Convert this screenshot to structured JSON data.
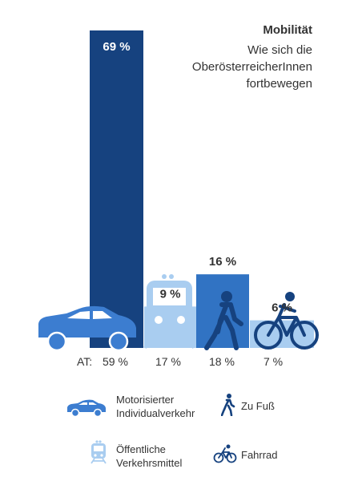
{
  "title": "Mobilität",
  "subtitle_lines": [
    "Wie sich die",
    "OberösterreicherInnen",
    "fortbewegen"
  ],
  "colors": {
    "motorisiert": "#16427f",
    "oeffentlich": "#a9cdf0",
    "fuss": "#3173c3",
    "fahrrad": "#a9cdf0",
    "icon_dark": "#16427f",
    "icon_mid": "#3c7dd0",
    "text": "#333333"
  },
  "chart_data": {
    "type": "bar",
    "categories": [
      "Motorisierter Individualverkehr",
      "Öffentliche Verkehrsmittel",
      "Zu Fuß",
      "Fahrrad"
    ],
    "series": [
      {
        "values": [
          69,
          9,
          16,
          6
        ]
      },
      {
        "name": "AT",
        "values": [
          59,
          17,
          18,
          7
        ]
      }
    ],
    "value_labels": [
      "69 %",
      "9 %",
      "16 %",
      "6 %"
    ],
    "at_label": "AT:",
    "at_labels": [
      "59 %",
      "17 %",
      "18 %",
      "7 %"
    ],
    "ylim": [
      0,
      69
    ]
  },
  "legend": [
    {
      "icon": "car-icon",
      "lines": [
        "Motorisierter",
        "Individualverkehr"
      ]
    },
    {
      "icon": "pedestrian-icon",
      "lines": [
        "Zu Fuß"
      ]
    },
    {
      "icon": "tram-icon",
      "lines": [
        "Öffentliche",
        "Verkehrsmittel"
      ]
    },
    {
      "icon": "bicycle-icon",
      "lines": [
        "Fahrrad"
      ]
    }
  ]
}
